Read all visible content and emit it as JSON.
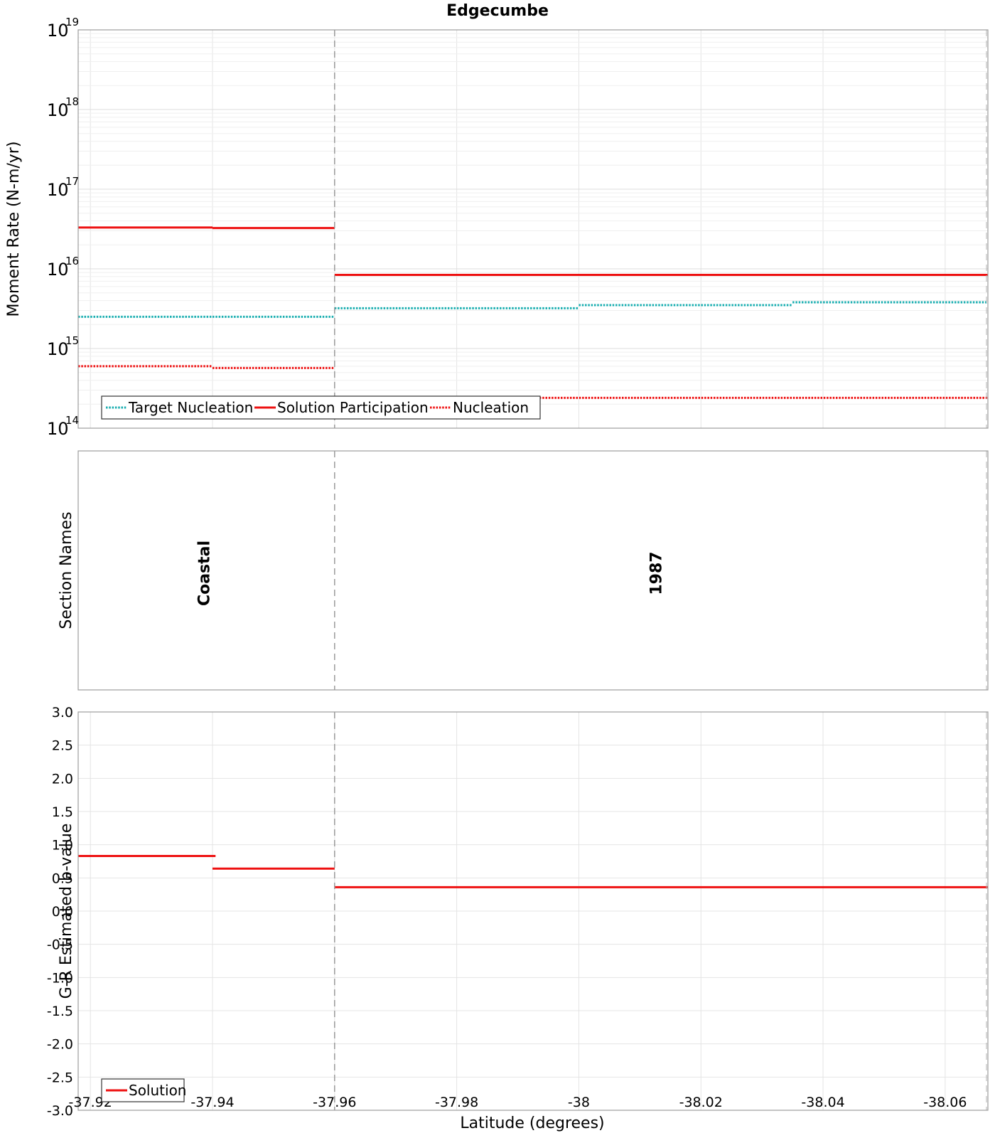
{
  "chart_data": {
    "type": "line",
    "title": "Edgecumbe",
    "xlabel": "Latitude (degrees)",
    "xlim": [
      -37.918,
      -38.067
    ],
    "x_ticks": [
      "-37.92",
      "-37.94",
      "-37.96",
      "-37.98",
      "-38",
      "-38.02",
      "-38.04",
      "-38.06"
    ],
    "section_boundaries": [
      -37.96
    ],
    "panels": [
      {
        "id": "moment",
        "ylabel": "Moment Rate (N-m/yr)",
        "y_scale": "log",
        "ylim": [
          100000000000000.0,
          1e+19
        ],
        "y_tick_exponents": [
          "14",
          "15",
          "16",
          "17",
          "18",
          "19"
        ],
        "grid": true,
        "legend": "bottom-left",
        "series": [
          {
            "name": "Target Nucleation",
            "style": "dotted",
            "color": "#1aaeb0",
            "segments": [
              {
                "x0": -37.918,
                "x1": -37.94,
                "y": 2500000000000000.0
              },
              {
                "x0": -37.94,
                "x1": -37.96,
                "y": 2500000000000000.0
              },
              {
                "x0": -37.96,
                "x1": -38.0,
                "y": 3200000000000000.0
              },
              {
                "x0": -38.0,
                "x1": -38.035,
                "y": 3500000000000000.0
              },
              {
                "x0": -38.035,
                "x1": -38.067,
                "y": 3800000000000000.0
              }
            ]
          },
          {
            "name": "Solution Participation",
            "style": "solid",
            "color": "#ee1111",
            "segments": [
              {
                "x0": -37.918,
                "x1": -37.94,
                "y": 3.3e+16
              },
              {
                "x0": -37.94,
                "x1": -37.96,
                "y": 3.25e+16
              },
              {
                "x0": -37.96,
                "x1": -38.067,
                "y": 8400000000000000.0
              }
            ]
          },
          {
            "name": "Nucleation",
            "style": "dotted",
            "color": "#ee1111",
            "segments": [
              {
                "x0": -37.918,
                "x1": -37.94,
                "y": 600000000000000.0
              },
              {
                "x0": -37.94,
                "x1": -37.96,
                "y": 570000000000000.0
              },
              {
                "x0": -37.96,
                "x1": -38.067,
                "y": 240000000000000.0
              }
            ]
          }
        ]
      },
      {
        "id": "sections",
        "ylabel": "Section Names",
        "labels": [
          {
            "text": "Coastal",
            "x": -37.9395
          },
          {
            "text": "1987",
            "x": -38.0135
          }
        ]
      },
      {
        "id": "bvalue",
        "ylabel": "G-R Estimated b-value",
        "y_scale": "linear",
        "ylim": [
          -3.0,
          3.0
        ],
        "y_ticks": [
          "-3.0",
          "-2.5",
          "-2.0",
          "-1.5",
          "-1.0",
          "-0.5",
          "0.0",
          "0.5",
          "1.0",
          "1.5",
          "2.0",
          "2.5",
          "3.0"
        ],
        "grid": true,
        "legend": "bottom-left",
        "series": [
          {
            "name": "Solution",
            "style": "solid",
            "color": "#ee1111",
            "segments": [
              {
                "x0": -37.918,
                "x1": -37.9405,
                "y": 0.83
              },
              {
                "x0": -37.94,
                "x1": -37.96,
                "y": 0.64
              },
              {
                "x0": -37.96,
                "x1": -38.067,
                "y": 0.36
              }
            ]
          }
        ]
      }
    ]
  }
}
